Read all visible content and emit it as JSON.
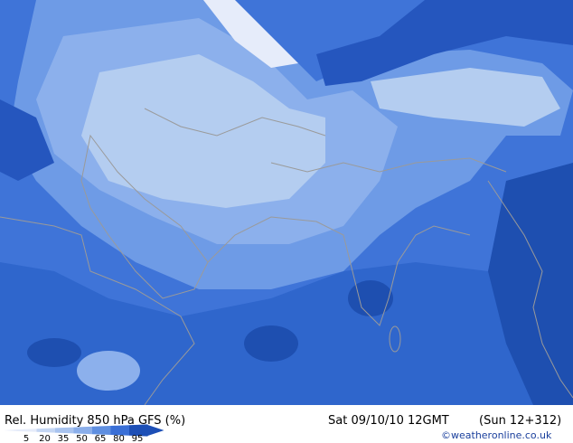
{
  "map": {
    "title": "Rel. Humidity 850 hPa GFS (%)",
    "valid_time": "Sat 09/10/10 12GMT",
    "forecast": "(Sun 12+312)",
    "credit": "©weatheronline.co.uk",
    "legend": {
      "levels": [
        5,
        20,
        35,
        50,
        65,
        80,
        95
      ],
      "colors": [
        "#e6ecfa",
        "#c4d6f3",
        "#a8c3ef",
        "#8aaeea",
        "#5f8fe0",
        "#3a6fd6",
        "#1d4fb6"
      ]
    }
  }
}
